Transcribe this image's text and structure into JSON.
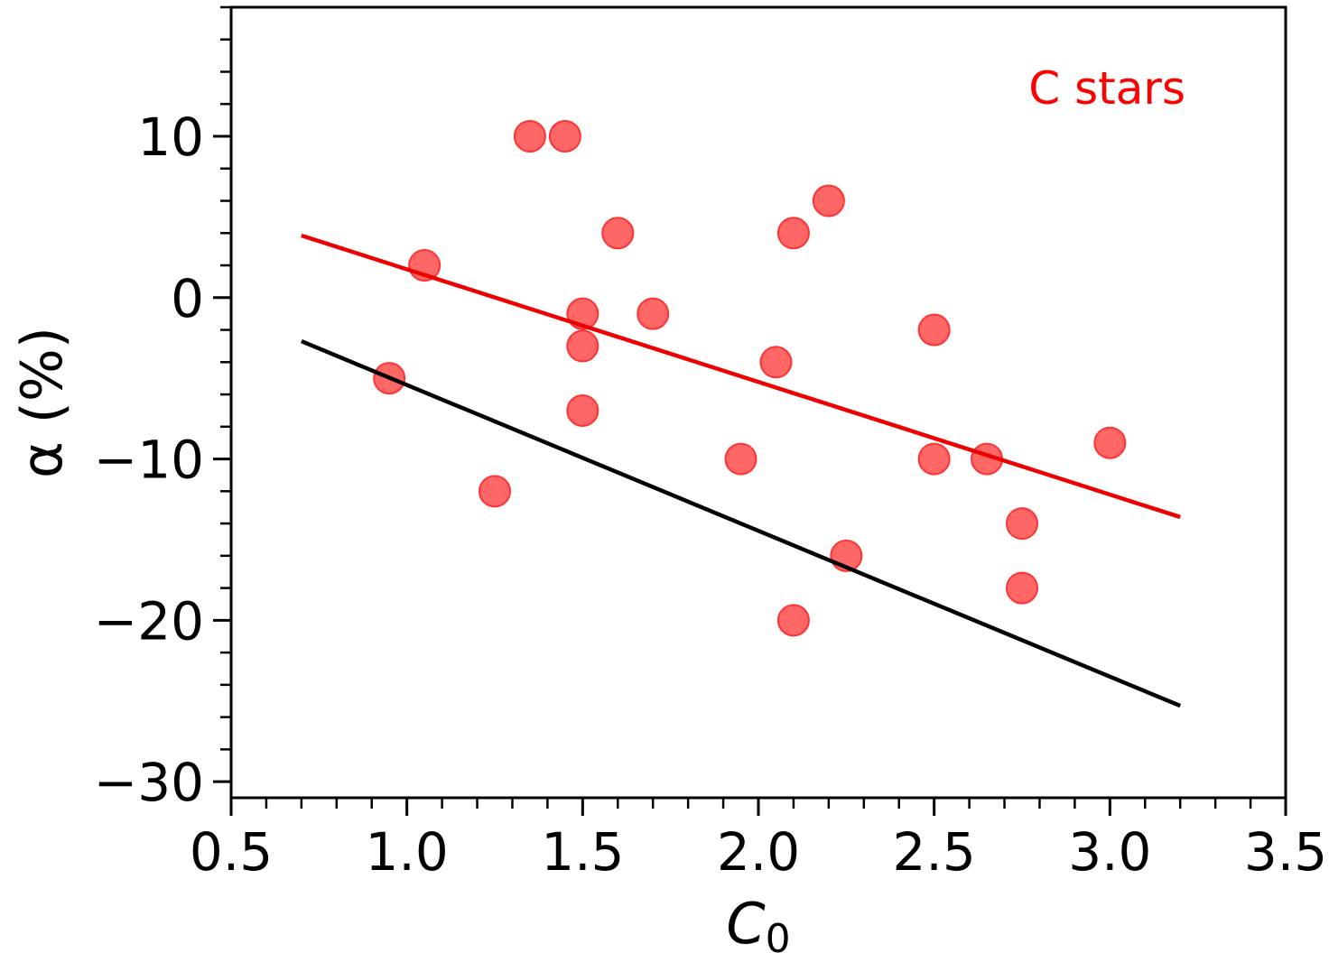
{
  "chart_data": {
    "type": "scatter",
    "title": "",
    "xlabel": "C",
    "xlabel_subscript": "0",
    "ylabel": "α (%)",
    "xlim": [
      0.5,
      3.5
    ],
    "ylim": [
      -31,
      18
    ],
    "xticks": [
      0.5,
      1.0,
      1.5,
      2.0,
      2.5,
      3.0,
      3.5
    ],
    "xtick_labels": [
      "0.5",
      "1.0",
      "1.5",
      "2.0",
      "2.5",
      "3.0",
      "3.5"
    ],
    "yticks": [
      10,
      0,
      -10,
      -20,
      -30
    ],
    "ytick_labels": [
      "10",
      "0",
      "−10",
      "−20",
      "−30"
    ],
    "x_minor_step": 0.1,
    "y_minor_step": 2,
    "grid": false,
    "annotation": {
      "text": "C stars",
      "placement": "top-right",
      "color": "#ff0000"
    },
    "series": [
      {
        "name": "C stars",
        "type": "scatter",
        "color": "#ff5555",
        "points": [
          [
            0.95,
            -5
          ],
          [
            1.05,
            2
          ],
          [
            1.25,
            -12
          ],
          [
            1.35,
            10
          ],
          [
            1.45,
            10
          ],
          [
            1.5,
            -1
          ],
          [
            1.5,
            -3
          ],
          [
            1.5,
            -7
          ],
          [
            1.6,
            4
          ],
          [
            1.7,
            -1
          ],
          [
            1.95,
            -10
          ],
          [
            2.05,
            -4
          ],
          [
            2.1,
            4
          ],
          [
            2.1,
            -20
          ],
          [
            2.2,
            6
          ],
          [
            2.25,
            -16
          ],
          [
            2.5,
            -2
          ],
          [
            2.5,
            -10
          ],
          [
            2.65,
            -10
          ],
          [
            2.75,
            -14
          ],
          [
            2.75,
            -18
          ],
          [
            3.0,
            -9
          ]
        ]
      },
      {
        "name": "fit red",
        "type": "line",
        "color": "#ee0000",
        "points": [
          [
            0.7,
            3.85
          ],
          [
            3.2,
            -13.6
          ]
        ]
      },
      {
        "name": "fit black",
        "type": "line",
        "color": "#000000",
        "points": [
          [
            0.7,
            -2.7
          ],
          [
            3.2,
            -25.3
          ]
        ]
      }
    ]
  }
}
